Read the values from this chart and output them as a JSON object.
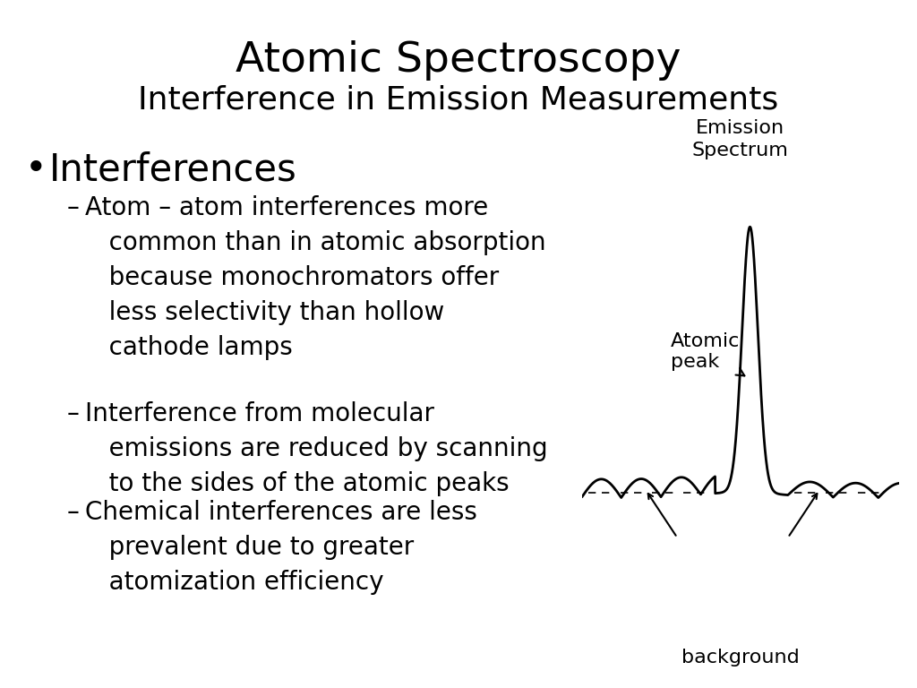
{
  "title_line1": "Atomic Spectroscopy",
  "title_line2": "Interference in Emission Measurements",
  "title_fontsize": 34,
  "subtitle_fontsize": 26,
  "background_color": "#ffffff",
  "bullet_point": "Interferences",
  "bullet_fontsize": 30,
  "sub_bullets": [
    "Atom – atom interferences more\n   common than in atomic absorption\n   because monochromators offer\n   less selectivity than hollow\n   cathode lamps",
    "Interference from molecular\n   emissions are reduced by scanning\n   to the sides of the atomic peaks",
    "Chemical interferences are less\n   prevalent due to greater\n   atomization efficiency"
  ],
  "sub_bullet_fontsize": 20,
  "diagram_label_emission": "Emission\nSpectrum",
  "diagram_label_atomic": "Atomic\npeak",
  "diagram_label_background": "background",
  "diagram_fontsize": 16
}
